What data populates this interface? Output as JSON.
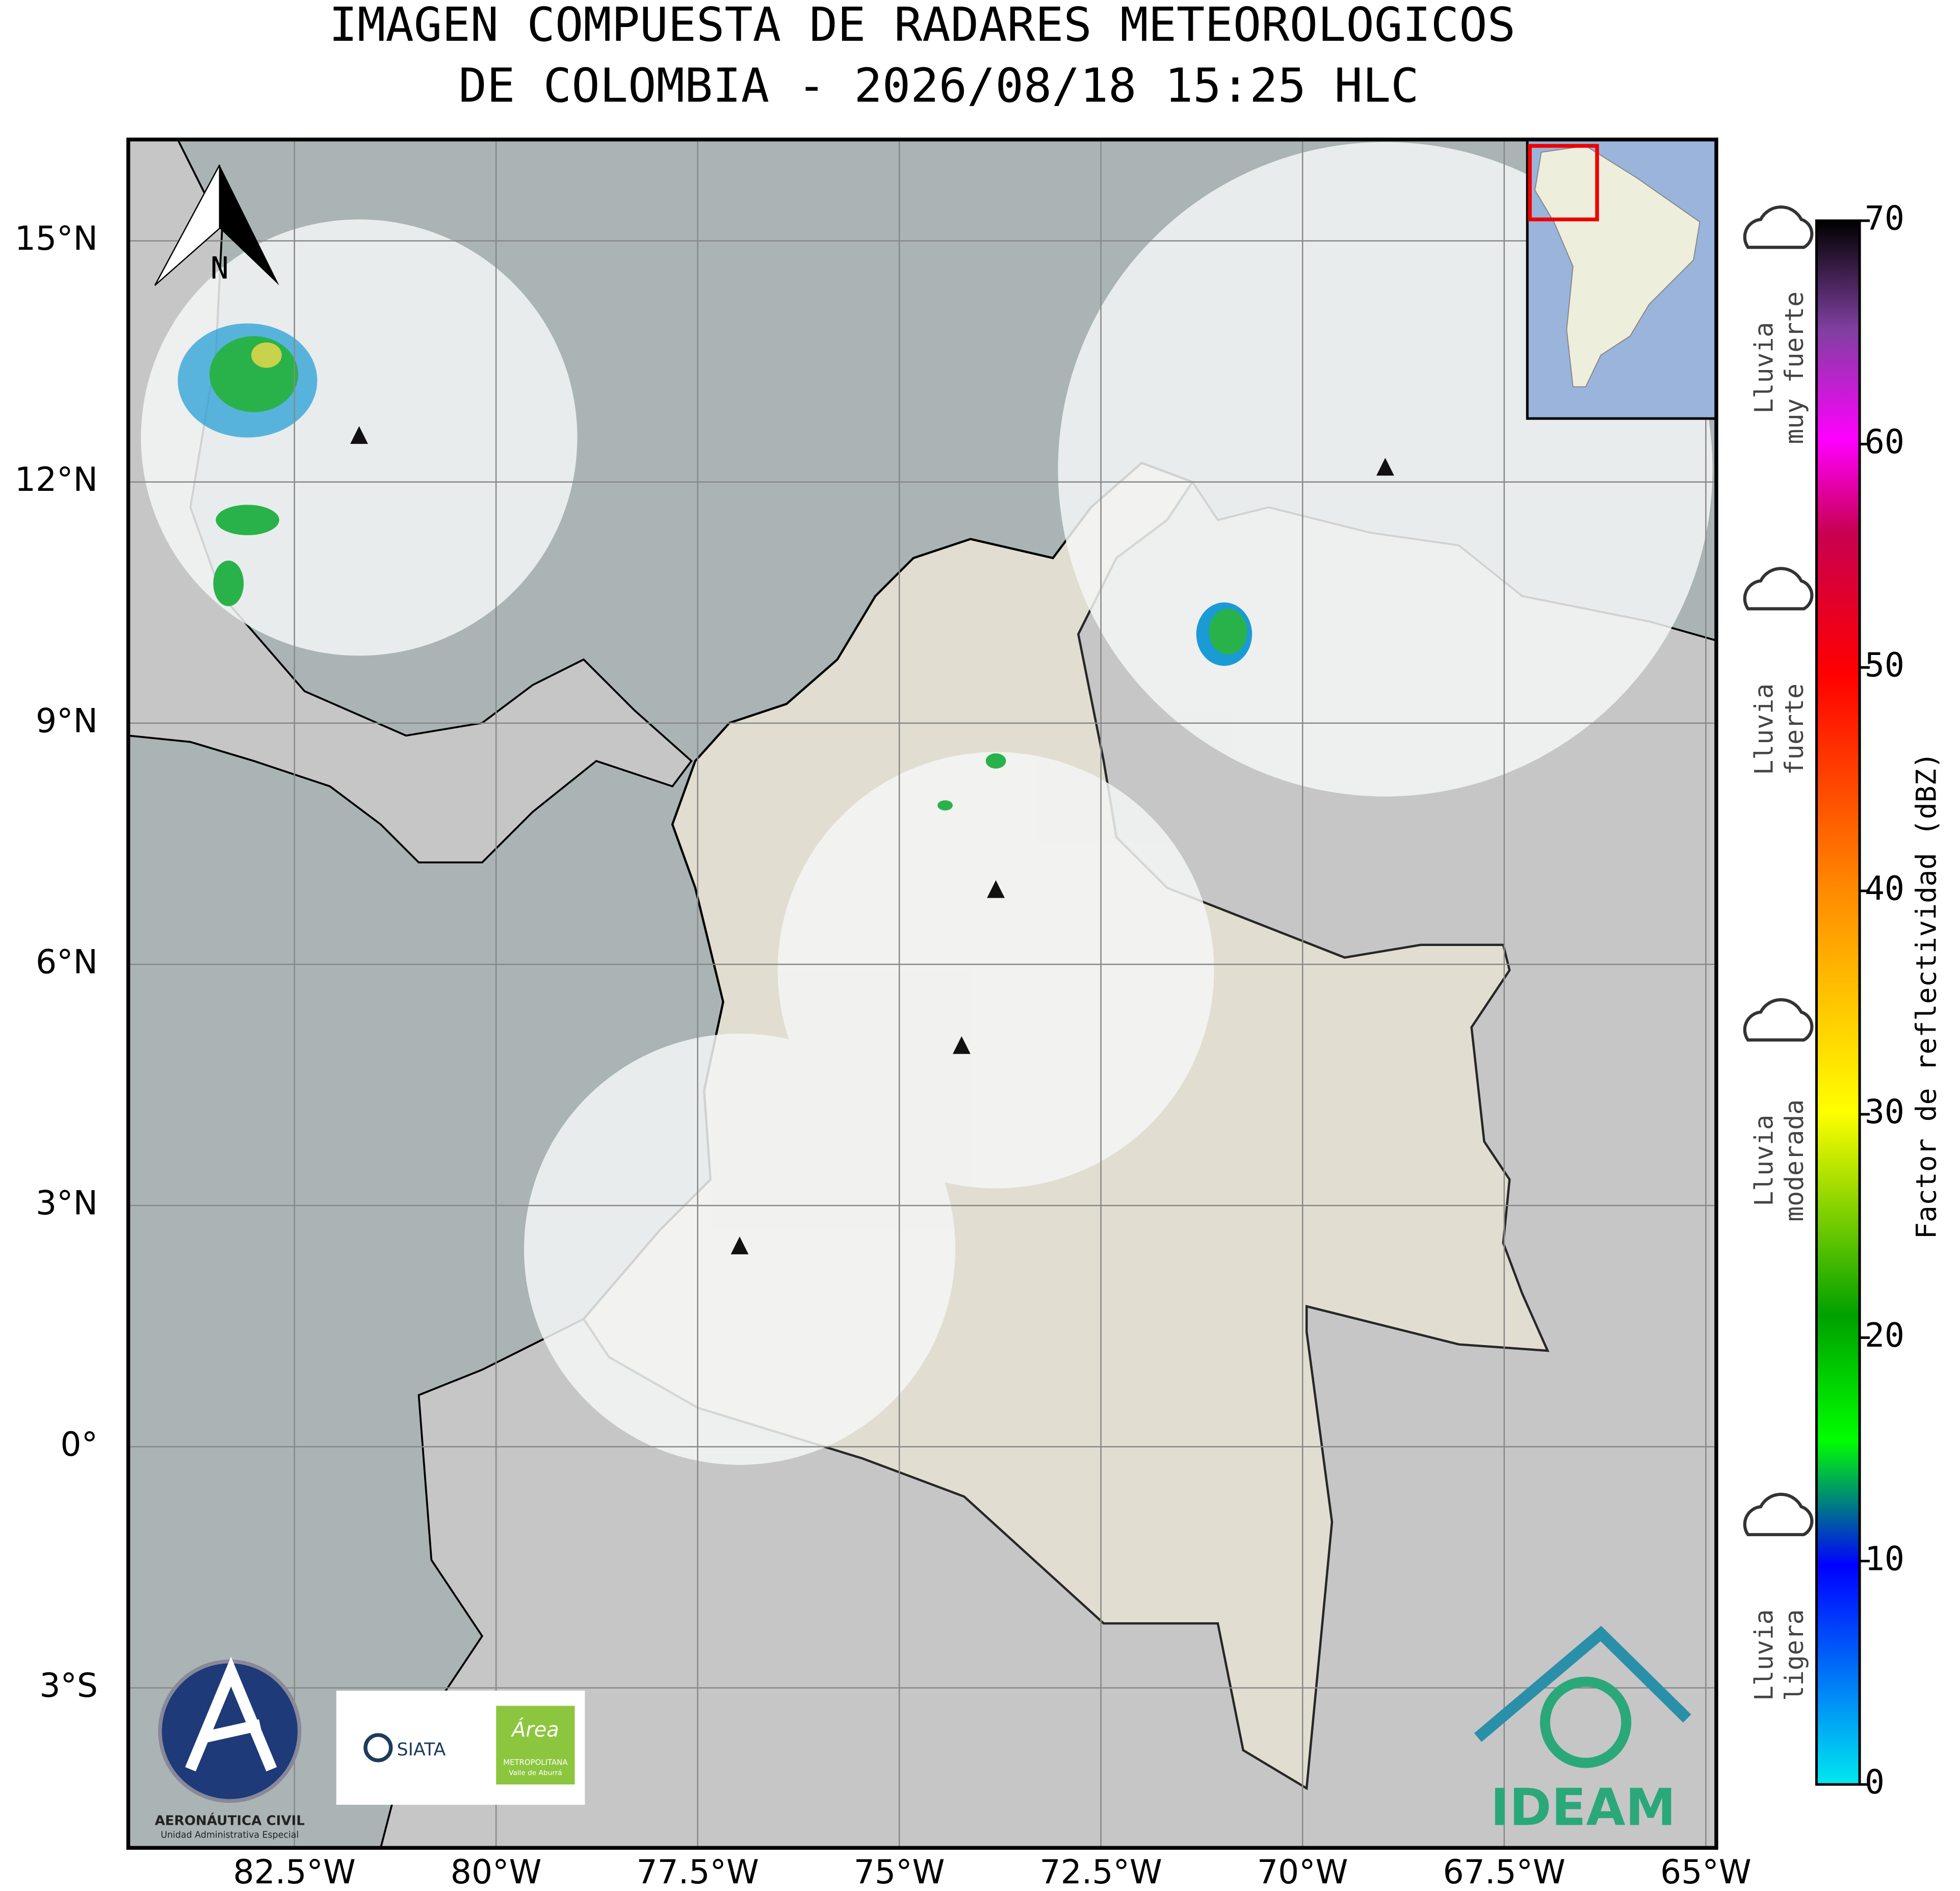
{
  "title": [
    "IMAGEN COMPUESTA DE RADARES METEOROLOGICOS",
    "DE COLOMBIA - 2026/08/18 15:25 HLC"
  ],
  "map": {
    "lonlim": [
      -84.56,
      -64.87
    ],
    "latlim": [
      -4.99,
      16.26
    ],
    "lon_ticks": [
      {
        "value": -82.5,
        "label": "82.5°W"
      },
      {
        "value": -80,
        "label": "80°W"
      },
      {
        "value": -77.5,
        "label": "77.5°W"
      },
      {
        "value": -75,
        "label": "75°W"
      },
      {
        "value": -72.5,
        "label": "72.5°W"
      },
      {
        "value": -70,
        "label": "70°W"
      },
      {
        "value": -67.5,
        "label": "67.5°W"
      },
      {
        "value": -65,
        "label": "65°W"
      }
    ],
    "lat_ticks": [
      {
        "value": 15,
        "label": "15°N"
      },
      {
        "value": 12,
        "label": "12°N"
      },
      {
        "value": 9,
        "label": "9°N"
      },
      {
        "value": 6,
        "label": "6°N"
      },
      {
        "value": 3,
        "label": "3°N"
      },
      {
        "value": 0,
        "label": "0°"
      },
      {
        "value": -3,
        "label": "3°S"
      }
    ],
    "compass": "N"
  },
  "colorbar": {
    "label": "Factor de reflectividad (dBZ)",
    "lim": [
      0,
      70
    ],
    "ticks": [
      0,
      10,
      20,
      30,
      40,
      50,
      60,
      70
    ]
  },
  "rain_levels": [
    [
      "Lluvia",
      "muy fuerte"
    ],
    [
      "Lluvia",
      "fuerte"
    ],
    [
      "Lluvia",
      "moderada"
    ],
    [
      "Lluvia",
      "ligera"
    ]
  ],
  "logos": {
    "aerocivil": [
      "AERONÁUTICA CIVIL",
      "Unidad Administrativa Especial"
    ],
    "siata": "SIATA",
    "area": [
      "Área",
      "METROPOLITANA",
      "Valle de Aburrá"
    ],
    "ideam": "IDEAM"
  }
}
